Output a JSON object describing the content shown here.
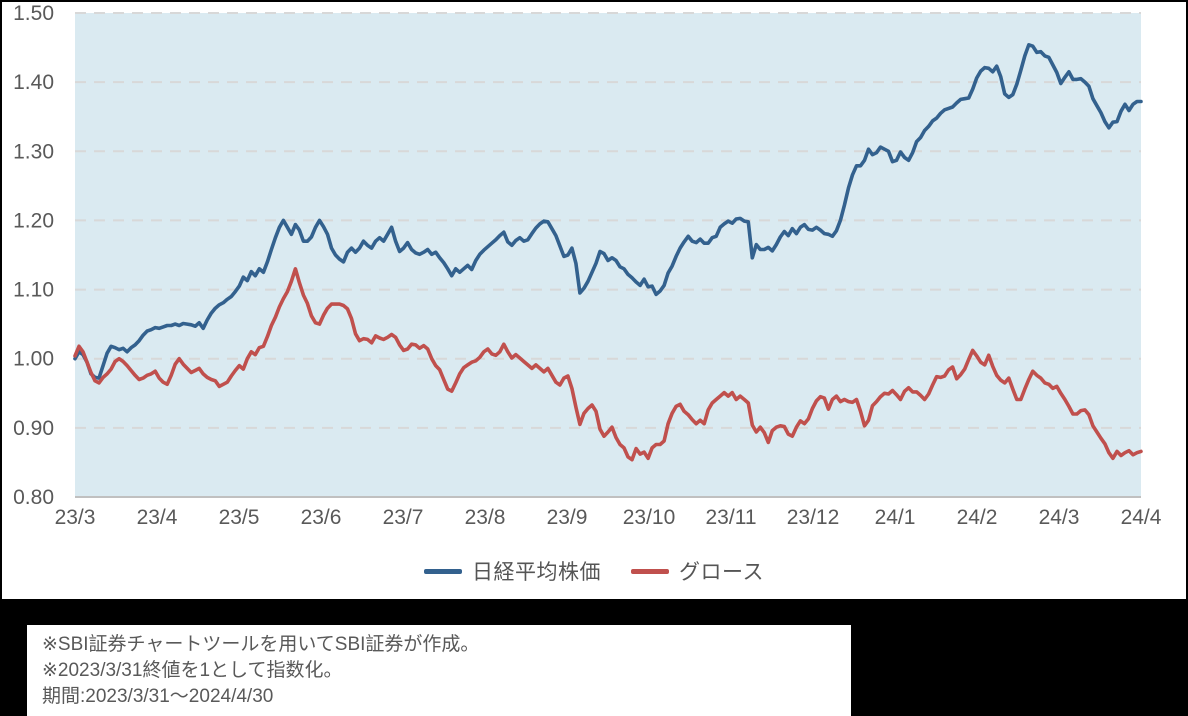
{
  "chart_data": {
    "type": "line",
    "title": "",
    "x_axis": {
      "tick_labels": [
        "23/3",
        "23/4",
        "23/5",
        "23/6",
        "23/7",
        "23/8",
        "23/9",
        "23/10",
        "23/11",
        "23/12",
        "24/1",
        "24/2",
        "24/3",
        "24/4"
      ],
      "start": "2023/3/31",
      "end": "2024/4/30"
    },
    "y_axis": {
      "min": 0.8,
      "max": 1.5,
      "tick_step": 0.1,
      "tick_labels": [
        "0.80",
        "0.90",
        "1.00",
        "1.10",
        "1.20",
        "1.30",
        "1.40",
        "1.50"
      ]
    },
    "grid": "horizontal-dashed",
    "legend_position": "bottom",
    "plot_bg_color": "#DAEAF1",
    "grid_color": "#D8D8D8",
    "axis_line_color": "#C0C0C0",
    "tick_text_color": "#595959",
    "note": "Both series indexed to 1.0 at 2023/3/31; values sampled evenly in time across the full range",
    "series": [
      {
        "name": "日経平均株価",
        "color": "#33618E",
        "values": [
          1.0,
          1.01,
          1.006,
          0.995,
          0.978,
          0.973,
          0.972,
          0.99,
          1.008,
          1.018,
          1.016,
          1.013,
          1.015,
          1.01,
          1.016,
          1.02,
          1.026,
          1.034,
          1.04,
          1.042,
          1.045,
          1.044,
          1.046,
          1.048,
          1.048,
          1.05,
          1.048,
          1.051,
          1.05,
          1.049,
          1.047,
          1.052,
          1.044,
          1.056,
          1.066,
          1.073,
          1.078,
          1.081,
          1.086,
          1.09,
          1.097,
          1.105,
          1.118,
          1.113,
          1.126,
          1.12,
          1.13,
          1.125,
          1.14,
          1.158,
          1.175,
          1.19,
          1.2,
          1.19,
          1.18,
          1.194,
          1.186,
          1.17,
          1.17,
          1.176,
          1.19,
          1.2,
          1.191,
          1.18,
          1.16,
          1.15,
          1.144,
          1.14,
          1.154,
          1.16,
          1.154,
          1.16,
          1.17,
          1.164,
          1.16,
          1.17,
          1.175,
          1.17,
          1.18,
          1.19,
          1.17,
          1.155,
          1.16,
          1.168,
          1.158,
          1.153,
          1.151,
          1.154,
          1.158,
          1.151,
          1.154,
          1.146,
          1.139,
          1.13,
          1.12,
          1.13,
          1.125,
          1.13,
          1.135,
          1.129,
          1.142,
          1.151,
          1.157,
          1.162,
          1.167,
          1.172,
          1.178,
          1.183,
          1.169,
          1.164,
          1.171,
          1.175,
          1.17,
          1.172,
          1.181,
          1.189,
          1.195,
          1.199,
          1.198,
          1.188,
          1.178,
          1.163,
          1.148,
          1.15,
          1.16,
          1.138,
          1.095,
          1.102,
          1.112,
          1.125,
          1.138,
          1.155,
          1.152,
          1.142,
          1.146,
          1.142,
          1.133,
          1.13,
          1.122,
          1.117,
          1.111,
          1.106,
          1.115,
          1.104,
          1.105,
          1.093,
          1.098,
          1.106,
          1.124,
          1.134,
          1.148,
          1.16,
          1.169,
          1.177,
          1.17,
          1.168,
          1.173,
          1.167,
          1.167,
          1.175,
          1.177,
          1.19,
          1.195,
          1.199,
          1.196,
          1.202,
          1.203,
          1.199,
          1.198,
          1.146,
          1.165,
          1.158,
          1.158,
          1.161,
          1.156,
          1.165,
          1.176,
          1.184,
          1.178,
          1.188,
          1.181,
          1.19,
          1.194,
          1.187,
          1.186,
          1.19,
          1.186,
          1.181,
          1.18,
          1.177,
          1.185,
          1.2,
          1.222,
          1.247,
          1.266,
          1.279,
          1.279,
          1.287,
          1.303,
          1.295,
          1.298,
          1.306,
          1.303,
          1.3,
          1.285,
          1.287,
          1.299,
          1.291,
          1.287,
          1.298,
          1.314,
          1.32,
          1.33,
          1.336,
          1.344,
          1.348,
          1.355,
          1.36,
          1.362,
          1.364,
          1.37,
          1.375,
          1.376,
          1.377,
          1.39,
          1.406,
          1.416,
          1.421,
          1.42,
          1.415,
          1.423,
          1.408,
          1.383,
          1.378,
          1.382,
          1.397,
          1.417,
          1.438,
          1.454,
          1.452,
          1.443,
          1.444,
          1.438,
          1.436,
          1.425,
          1.414,
          1.398,
          1.407,
          1.415,
          1.404,
          1.404,
          1.405,
          1.4,
          1.394,
          1.376,
          1.366,
          1.356,
          1.343,
          1.334,
          1.342,
          1.343,
          1.358,
          1.368,
          1.359,
          1.368,
          1.372,
          1.372
        ]
      },
      {
        "name": "グロース",
        "color": "#C0504D",
        "values": [
          1.004,
          1.018,
          1.01,
          0.995,
          0.98,
          0.968,
          0.965,
          0.973,
          0.978,
          0.985,
          0.996,
          1.0,
          0.996,
          0.99,
          0.983,
          0.976,
          0.97,
          0.972,
          0.976,
          0.978,
          0.982,
          0.972,
          0.966,
          0.963,
          0.976,
          0.992,
          1.0,
          0.992,
          0.986,
          0.98,
          0.983,
          0.986,
          0.978,
          0.973,
          0.97,
          0.968,
          0.96,
          0.963,
          0.966,
          0.975,
          0.983,
          0.99,
          0.985,
          1.0,
          1.01,
          1.006,
          1.016,
          1.018,
          1.032,
          1.048,
          1.06,
          1.075,
          1.087,
          1.097,
          1.112,
          1.13,
          1.11,
          1.092,
          1.08,
          1.062,
          1.052,
          1.05,
          1.063,
          1.073,
          1.079,
          1.079,
          1.079,
          1.077,
          1.072,
          1.058,
          1.036,
          1.026,
          1.029,
          1.028,
          1.023,
          1.033,
          1.03,
          1.028,
          1.031,
          1.035,
          1.031,
          1.02,
          1.012,
          1.014,
          1.021,
          1.02,
          1.015,
          1.019,
          1.014,
          1.0,
          0.99,
          0.984,
          0.97,
          0.956,
          0.953,
          0.965,
          0.978,
          0.987,
          0.991,
          0.995,
          0.997,
          1.002,
          1.01,
          1.014,
          1.007,
          1.005,
          1.01,
          1.021,
          1.01,
          1.001,
          1.006,
          1.001,
          0.996,
          0.991,
          0.986,
          0.991,
          0.986,
          0.981,
          0.986,
          0.976,
          0.966,
          0.962,
          0.972,
          0.975,
          0.957,
          0.93,
          0.905,
          0.921,
          0.928,
          0.933,
          0.924,
          0.898,
          0.888,
          0.894,
          0.901,
          0.886,
          0.876,
          0.871,
          0.858,
          0.854,
          0.87,
          0.862,
          0.865,
          0.856,
          0.871,
          0.876,
          0.876,
          0.881,
          0.906,
          0.921,
          0.931,
          0.934,
          0.924,
          0.919,
          0.912,
          0.906,
          0.911,
          0.906,
          0.926,
          0.936,
          0.941,
          0.946,
          0.951,
          0.946,
          0.951,
          0.941,
          0.946,
          0.941,
          0.936,
          0.904,
          0.894,
          0.901,
          0.893,
          0.879,
          0.896,
          0.901,
          0.903,
          0.902,
          0.891,
          0.888,
          0.901,
          0.91,
          0.906,
          0.913,
          0.928,
          0.939,
          0.945,
          0.943,
          0.927,
          0.941,
          0.946,
          0.938,
          0.941,
          0.938,
          0.937,
          0.941,
          0.924,
          0.903,
          0.911,
          0.932,
          0.938,
          0.945,
          0.95,
          0.949,
          0.954,
          0.948,
          0.941,
          0.953,
          0.958,
          0.952,
          0.952,
          0.947,
          0.941,
          0.949,
          0.962,
          0.974,
          0.973,
          0.975,
          0.984,
          0.988,
          0.971,
          0.977,
          0.985,
          0.999,
          1.012,
          1.004,
          0.995,
          0.991,
          1.005,
          0.989,
          0.976,
          0.969,
          0.965,
          0.972,
          0.956,
          0.941,
          0.941,
          0.956,
          0.97,
          0.982,
          0.976,
          0.972,
          0.965,
          0.963,
          0.957,
          0.96,
          0.95,
          0.941,
          0.931,
          0.92,
          0.92,
          0.925,
          0.926,
          0.919,
          0.903,
          0.894,
          0.885,
          0.877,
          0.864,
          0.856,
          0.866,
          0.86,
          0.864,
          0.867,
          0.861,
          0.864,
          0.866
        ]
      }
    ]
  },
  "footer": {
    "line1": "※SBI証券チャートツールを用いてSBI証券が作成。",
    "line2": "※2023/3/31終値を1として指数化。",
    "line3": "期間:2023/3/31～2024/4/30"
  }
}
